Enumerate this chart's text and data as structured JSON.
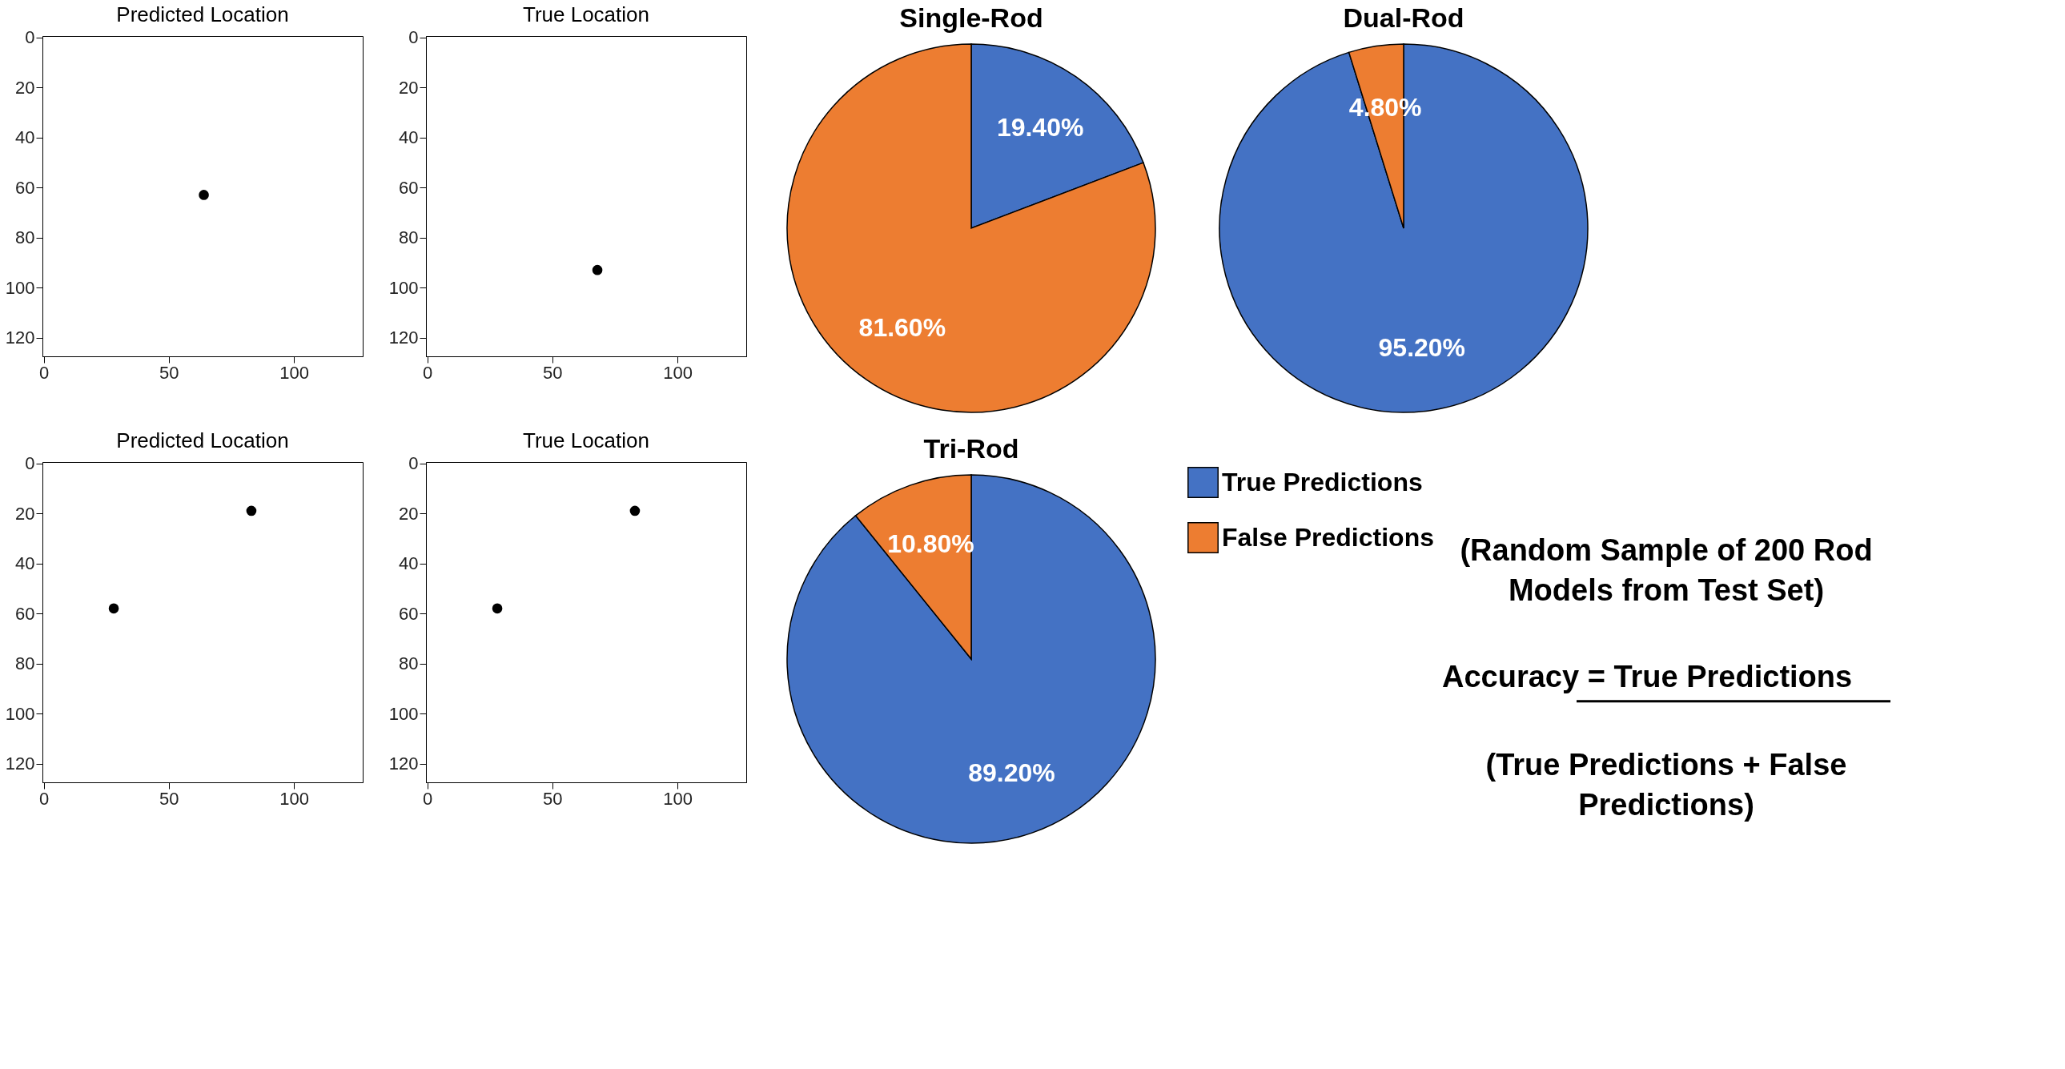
{
  "chart_data": [
    {
      "type": "scatter",
      "title": "Predicted Location",
      "x": [
        64
      ],
      "values": [
        63
      ],
      "color": "#000000",
      "xlim": [
        -0.5,
        127.5
      ],
      "ylim": [
        127.5,
        -0.5
      ],
      "xticks": [
        0,
        50,
        100
      ],
      "yticks": [
        0,
        20,
        40,
        60,
        80,
        100,
        120
      ],
      "grid": false
    },
    {
      "type": "scatter",
      "title": "True Location",
      "x": [
        68
      ],
      "values": [
        93
      ],
      "color": "#000000",
      "xlim": [
        -0.5,
        127.5
      ],
      "ylim": [
        127.5,
        -0.5
      ],
      "xticks": [
        0,
        50,
        100
      ],
      "yticks": [
        0,
        20,
        40,
        60,
        80,
        100,
        120
      ],
      "grid": false
    },
    {
      "type": "pie",
      "title": "Single-Rod",
      "categories": [
        null,
        null
      ],
      "values": [
        19.4,
        81.6
      ],
      "colors": [
        "#4472c4",
        "#ed7d31"
      ],
      "value_labels": [
        "19.40%",
        "81.60%"
      ]
    },
    {
      "type": "pie",
      "title": "Dual-Rod",
      "categories": [
        null,
        null
      ],
      "values": [
        95.2,
        4.8
      ],
      "colors": [
        "#4472c4",
        "#ed7d31"
      ],
      "value_labels": [
        "95.20%",
        "4.80%"
      ]
    },
    {
      "type": "scatter",
      "title": "Predicted Location",
      "x": [
        28,
        83
      ],
      "values": [
        58,
        19
      ],
      "color": "#000000",
      "xlim": [
        -0.5,
        127.5
      ],
      "ylim": [
        127.5,
        -0.5
      ],
      "xticks": [
        0,
        50,
        100
      ],
      "yticks": [
        0,
        20,
        40,
        60,
        80,
        100,
        120
      ],
      "grid": false
    },
    {
      "type": "scatter",
      "title": "True Location",
      "x": [
        28,
        83
      ],
      "values": [
        58,
        19
      ],
      "color": "#000000",
      "xlim": [
        -0.5,
        127.5
      ],
      "ylim": [
        127.5,
        -0.5
      ],
      "xticks": [
        0,
        50,
        100
      ],
      "yticks": [
        0,
        20,
        40,
        60,
        80,
        100,
        120
      ],
      "grid": false
    },
    {
      "type": "pie",
      "title": "Tri-Rod",
      "categories": [
        "True Predictions",
        "False Predictions"
      ],
      "values": [
        89.2,
        10.8
      ],
      "colors": [
        "#4472c4",
        "#ed7d31"
      ],
      "value_labels": [
        "89.20%",
        "10.80%"
      ],
      "legend": "right",
      "annotations": [
        "(Random Sample of 200 Rod Models from Test Set)",
        "Accuracy  =  True Predictions",
        "(True Predictions + False Predictions)"
      ]
    }
  ]
}
